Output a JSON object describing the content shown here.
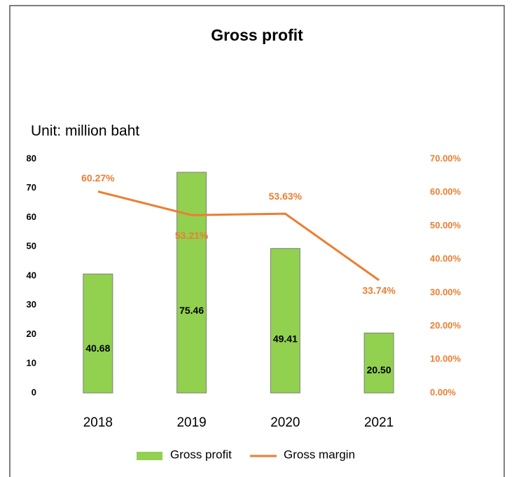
{
  "chart_data": {
    "type": "bar",
    "title": "Gross profit",
    "subtitle": "Unit: million baht",
    "categories": [
      "2018",
      "2019",
      "2020",
      "2021"
    ],
    "series": [
      {
        "name": "Gross profit",
        "type": "bar",
        "color": "#92d050",
        "values": [
          40.68,
          75.46,
          49.41,
          20.5
        ],
        "value_labels": [
          "40.68",
          "75.46",
          "49.41",
          "20.50"
        ]
      },
      {
        "name": "Gross margin",
        "type": "line",
        "axis": "y2",
        "color": "#ed7d31",
        "values": [
          60.27,
          53.21,
          53.63,
          33.74
        ],
        "value_labels": [
          "60.27%",
          "53.21%",
          "53.63%",
          "33.74%"
        ]
      }
    ],
    "ylim": [
      0,
      80
    ],
    "yticks": [
      0,
      10,
      20,
      30,
      40,
      50,
      60,
      70,
      80
    ],
    "y2lim": [
      0,
      70
    ],
    "y2ticks": [
      {
        "value": 0,
        "label": "0.00%"
      },
      {
        "value": 10,
        "label": "10.00%"
      },
      {
        "value": 20,
        "label": "20.00%"
      },
      {
        "value": 30,
        "label": "30.00%"
      },
      {
        "value": 40,
        "label": "40.00%"
      },
      {
        "value": 50,
        "label": "50.00%"
      },
      {
        "value": 60,
        "label": "60.00%"
      },
      {
        "value": 70,
        "label": "70.00%"
      }
    ],
    "grid": false,
    "legend": "bottom"
  }
}
